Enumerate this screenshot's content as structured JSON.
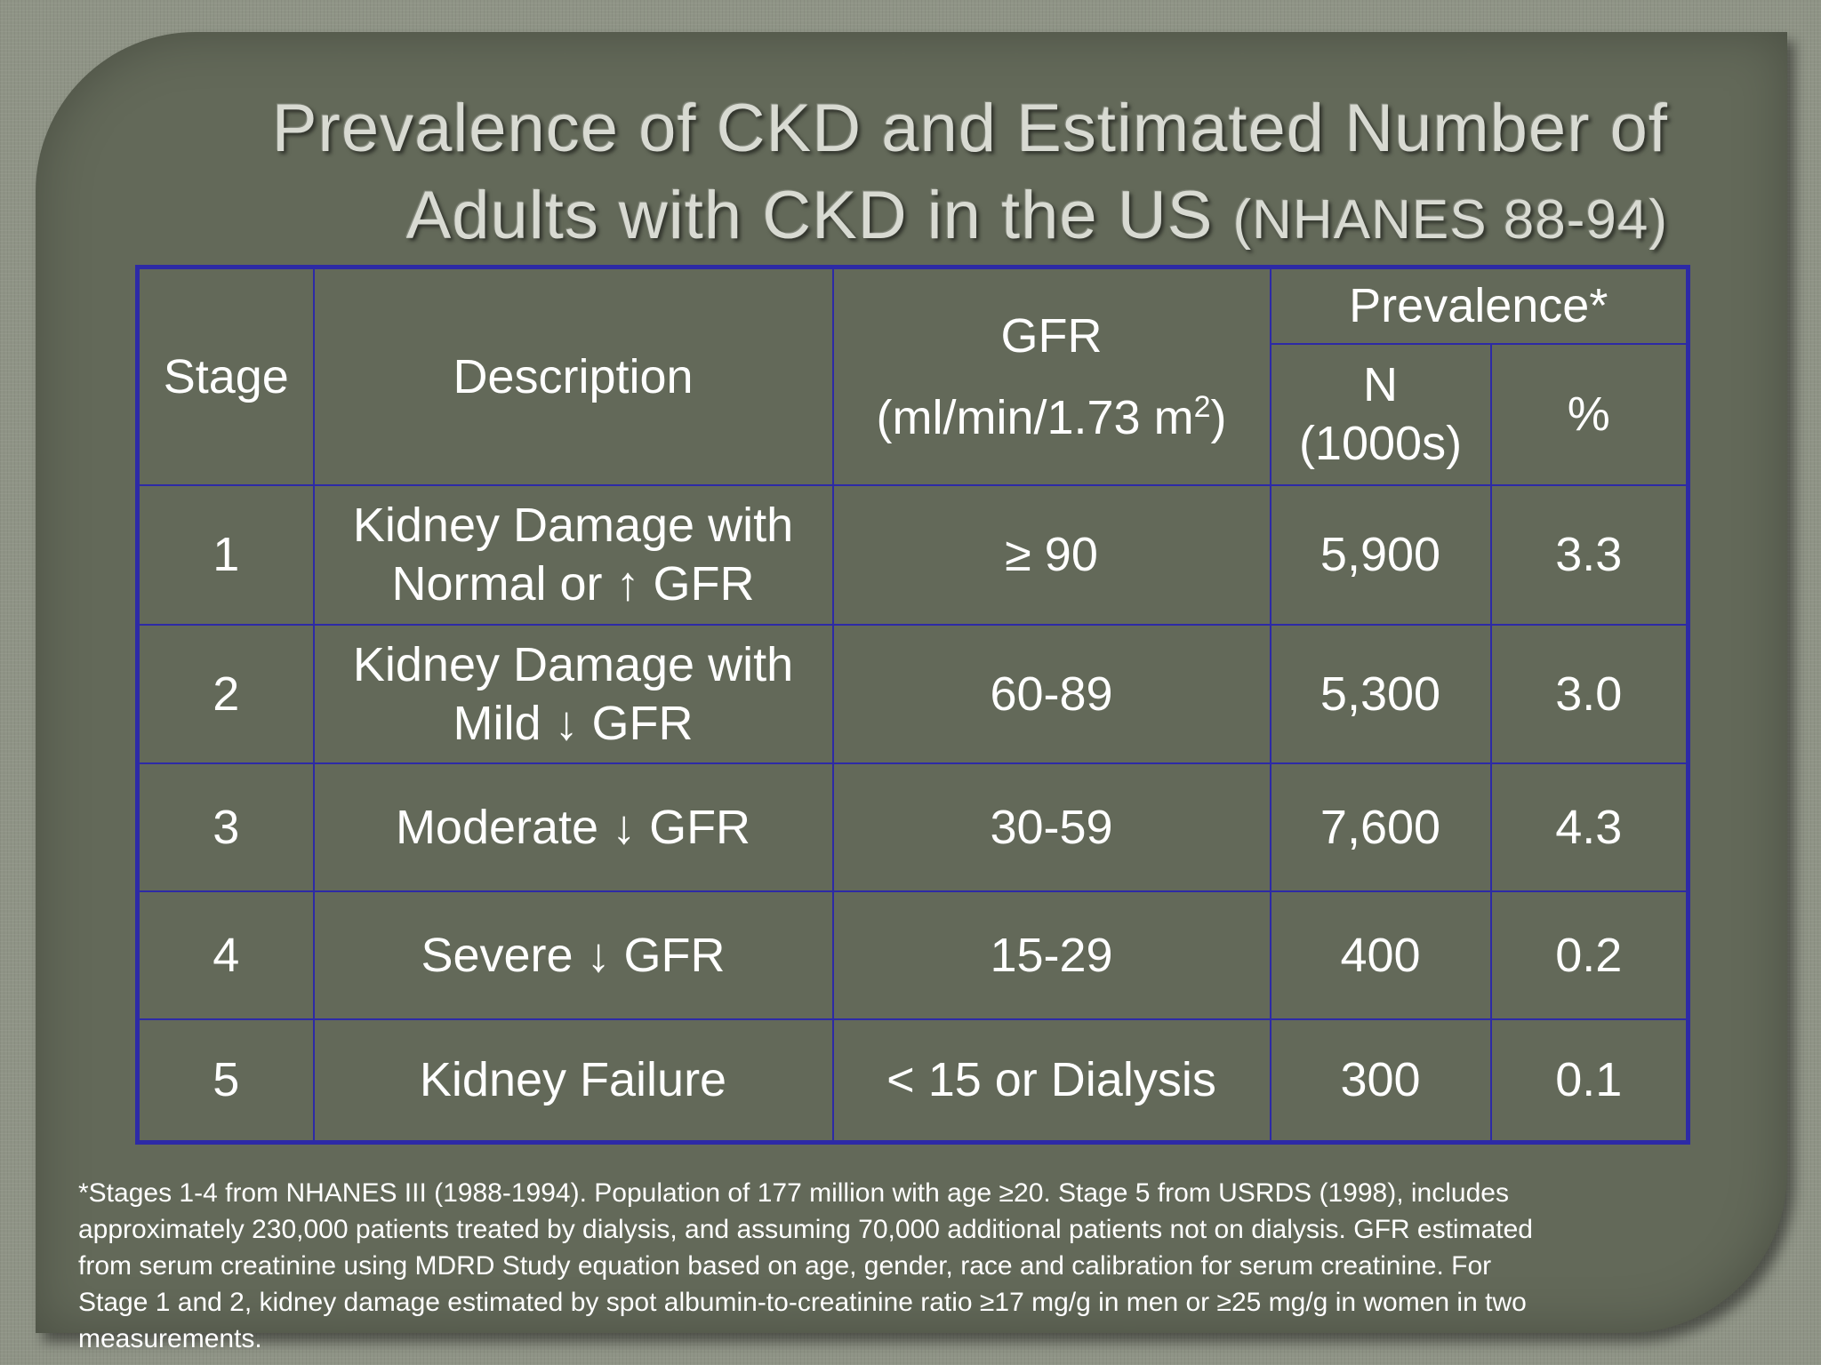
{
  "slide": {
    "title_line1": "Prevalence of CKD and Estimated Number of",
    "title_line2_main": "Adults with CKD in the US ",
    "title_line2_small": "(NHANES 88-94)"
  },
  "table": {
    "headers": {
      "stage": "Stage",
      "description": "Description",
      "gfr_line1": "GFR",
      "gfr_line2": "(ml/min/1.73 m",
      "gfr_sup": "2",
      "gfr_close": ")",
      "prevalence": "Prevalence*",
      "n_line1": "N",
      "n_line2": "(1000s)",
      "percent": "%"
    },
    "rows": [
      {
        "stage": "1",
        "desc_line1": "Kidney Damage with",
        "desc_line2": "Normal or ↑ GFR",
        "gfr": "≥ 90",
        "n": "5,900",
        "pct": "3.3"
      },
      {
        "stage": "2",
        "desc_line1": "Kidney Damage with",
        "desc_line2": "Mild ↓ GFR",
        "gfr": "60-89",
        "n": "5,300",
        "pct": "3.0"
      },
      {
        "stage": "3",
        "desc": "Moderate ↓ GFR",
        "gfr": "30-59",
        "n": "7,600",
        "pct": "4.3"
      },
      {
        "stage": "4",
        "desc": "Severe ↓ GFR",
        "gfr": "15-29",
        "n": "400",
        "pct": "0.2"
      },
      {
        "stage": "5",
        "desc": "Kidney Failure",
        "gfr": "< 15 or Dialysis",
        "n": "300",
        "pct": "0.1"
      }
    ]
  },
  "footnote": {
    "line1": "*Stages 1-4 from NHANES III (1988-1994).  Population of 177 million with age ≥20.  Stage 5 from USRDS (1998), includes",
    "line2": "approximately 230,000 patients treated by dialysis, and assuming 70,000 additional patients not on dialysis.  GFR estimated",
    "line3": "from serum creatinine using MDRD Study equation based on age, gender, race and calibration for serum creatinine.  For",
    "line4": "Stage 1 and 2, kidney damage estimated by spot albumin-to-creatinine ratio ≥17 mg/g in men or ≥25 mg/g in women in two",
    "line5": "measurements."
  },
  "colors": {
    "background": "#8f9486",
    "panel": "#636959",
    "table_border": "#2d2aa6",
    "title_text": "#d8dad2",
    "body_text": "#ffffff"
  }
}
